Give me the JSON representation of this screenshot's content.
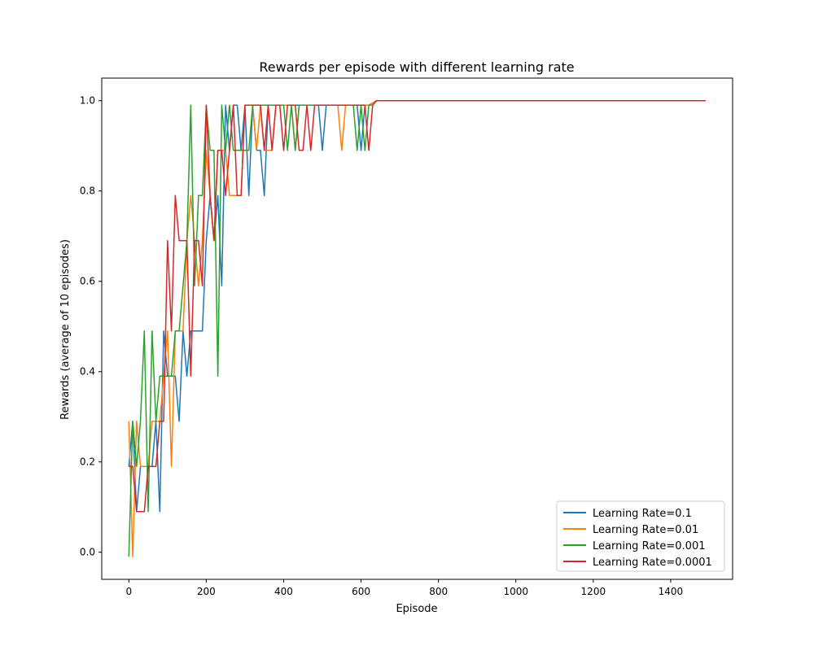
{
  "chart_data": {
    "type": "line",
    "title": "Rewards per episode with different learning rate",
    "xlabel": "Episode",
    "ylabel": "Rewards (average of 10 episodes)",
    "xlim": [
      -70,
      1560
    ],
    "ylim": [
      -0.06,
      1.05
    ],
    "x_ticks": [
      0,
      200,
      400,
      600,
      800,
      1000,
      1200,
      1400
    ],
    "y_ticks": [
      0.0,
      0.2,
      0.4,
      0.6,
      0.8,
      1.0
    ],
    "x_tick_labels": [
      "0",
      "200",
      "400",
      "600",
      "800",
      "1000",
      "1200",
      "1400"
    ],
    "y_tick_labels": [
      "0.0",
      "0.2",
      "0.4",
      "0.6",
      "0.8",
      "1.0"
    ],
    "grid": false,
    "legend_position": "lower-right",
    "series": [
      {
        "name": "Learning Rate=0.1",
        "color": "#1f77b4",
        "points": [
          [
            0,
            0.19
          ],
          [
            10,
            0.29
          ],
          [
            20,
            0.09
          ],
          [
            30,
            0.19
          ],
          [
            40,
            0.19
          ],
          [
            50,
            0.19
          ],
          [
            60,
            0.19
          ],
          [
            70,
            0.29
          ],
          [
            80,
            0.09
          ],
          [
            90,
            0.49
          ],
          [
            100,
            0.39
          ],
          [
            110,
            0.39
          ],
          [
            120,
            0.39
          ],
          [
            130,
            0.29
          ],
          [
            140,
            0.49
          ],
          [
            150,
            0.39
          ],
          [
            160,
            0.49
          ],
          [
            170,
            0.49
          ],
          [
            180,
            0.49
          ],
          [
            190,
            0.49
          ],
          [
            200,
            0.69
          ],
          [
            210,
            0.79
          ],
          [
            220,
            0.69
          ],
          [
            230,
            0.79
          ],
          [
            240,
            0.59
          ],
          [
            250,
            0.99
          ],
          [
            260,
            0.89
          ],
          [
            270,
            0.99
          ],
          [
            280,
            0.99
          ],
          [
            290,
            0.89
          ],
          [
            300,
            0.99
          ],
          [
            310,
            0.79
          ],
          [
            320,
            0.99
          ],
          [
            330,
            0.89
          ],
          [
            340,
            0.89
          ],
          [
            350,
            0.79
          ],
          [
            360,
            0.99
          ],
          [
            370,
            0.99
          ],
          [
            380,
            0.99
          ],
          [
            390,
            0.99
          ],
          [
            400,
            0.99
          ],
          [
            410,
            0.99
          ],
          [
            420,
            0.99
          ],
          [
            430,
            0.99
          ],
          [
            440,
            0.99
          ],
          [
            450,
            0.99
          ],
          [
            460,
            0.99
          ],
          [
            470,
            0.99
          ],
          [
            480,
            0.99
          ],
          [
            490,
            0.99
          ],
          [
            500,
            0.89
          ],
          [
            510,
            0.99
          ],
          [
            520,
            0.99
          ],
          [
            560,
            0.99
          ],
          [
            580,
            0.99
          ],
          [
            590,
            0.99
          ],
          [
            600,
            0.89
          ],
          [
            610,
            0.99
          ],
          [
            620,
            0.99
          ],
          [
            640,
            1.0
          ],
          [
            1490,
            1.0
          ]
        ]
      },
      {
        "name": "Learning Rate=0.01",
        "color": "#ff7f0e",
        "points": [
          [
            0,
            0.29
          ],
          [
            10,
            -0.01
          ],
          [
            20,
            0.29
          ],
          [
            30,
            0.19
          ],
          [
            40,
            0.19
          ],
          [
            50,
            0.19
          ],
          [
            60,
            0.29
          ],
          [
            70,
            0.29
          ],
          [
            80,
            0.29
          ],
          [
            90,
            0.39
          ],
          [
            100,
            0.49
          ],
          [
            110,
            0.19
          ],
          [
            120,
            0.49
          ],
          [
            130,
            0.49
          ],
          [
            140,
            0.49
          ],
          [
            150,
            0.69
          ],
          [
            160,
            0.79
          ],
          [
            170,
            0.69
          ],
          [
            180,
            0.59
          ],
          [
            190,
            0.69
          ],
          [
            200,
            0.89
          ],
          [
            210,
            0.79
          ],
          [
            220,
            0.69
          ],
          [
            230,
            0.89
          ],
          [
            240,
            0.89
          ],
          [
            250,
            0.89
          ],
          [
            260,
            0.79
          ],
          [
            270,
            0.79
          ],
          [
            280,
            0.79
          ],
          [
            290,
            0.79
          ],
          [
            300,
            0.99
          ],
          [
            310,
            0.99
          ],
          [
            320,
            0.99
          ],
          [
            330,
            0.89
          ],
          [
            340,
            0.99
          ],
          [
            350,
            0.89
          ],
          [
            360,
            0.89
          ],
          [
            370,
            0.89
          ],
          [
            380,
            0.99
          ],
          [
            390,
            0.99
          ],
          [
            400,
            0.99
          ],
          [
            410,
            0.99
          ],
          [
            420,
            0.99
          ],
          [
            430,
            0.89
          ],
          [
            440,
            0.99
          ],
          [
            450,
            0.99
          ],
          [
            460,
            0.99
          ],
          [
            470,
            0.99
          ],
          [
            480,
            0.99
          ],
          [
            490,
            0.99
          ],
          [
            500,
            0.99
          ],
          [
            510,
            0.99
          ],
          [
            520,
            0.99
          ],
          [
            530,
            0.99
          ],
          [
            540,
            0.99
          ],
          [
            550,
            0.89
          ],
          [
            560,
            0.99
          ],
          [
            570,
            0.99
          ],
          [
            580,
            0.99
          ],
          [
            590,
            0.99
          ],
          [
            600,
            0.99
          ],
          [
            610,
            0.99
          ],
          [
            620,
            0.99
          ],
          [
            640,
            1.0
          ],
          [
            1490,
            1.0
          ]
        ]
      },
      {
        "name": "Learning Rate=0.001",
        "color": "#2ca02c",
        "points": [
          [
            0,
            -0.01
          ],
          [
            10,
            0.29
          ],
          [
            20,
            0.19
          ],
          [
            30,
            0.29
          ],
          [
            40,
            0.49
          ],
          [
            50,
            0.09
          ],
          [
            60,
            0.49
          ],
          [
            70,
            0.29
          ],
          [
            80,
            0.39
          ],
          [
            90,
            0.39
          ],
          [
            100,
            0.39
          ],
          [
            110,
            0.39
          ],
          [
            120,
            0.49
          ],
          [
            130,
            0.49
          ],
          [
            140,
            0.59
          ],
          [
            150,
            0.69
          ],
          [
            160,
            0.99
          ],
          [
            170,
            0.59
          ],
          [
            180,
            0.79
          ],
          [
            190,
            0.79
          ],
          [
            200,
            0.99
          ],
          [
            210,
            0.89
          ],
          [
            220,
            0.89
          ],
          [
            230,
            0.39
          ],
          [
            240,
            0.99
          ],
          [
            250,
            0.89
          ],
          [
            260,
            0.99
          ],
          [
            270,
            0.89
          ],
          [
            280,
            0.89
          ],
          [
            290,
            0.89
          ],
          [
            300,
            0.89
          ],
          [
            310,
            0.89
          ],
          [
            320,
            0.99
          ],
          [
            330,
            0.99
          ],
          [
            340,
            0.99
          ],
          [
            350,
            0.99
          ],
          [
            360,
            0.99
          ],
          [
            370,
            0.99
          ],
          [
            380,
            0.99
          ],
          [
            390,
            0.99
          ],
          [
            400,
            0.99
          ],
          [
            410,
            0.89
          ],
          [
            420,
            0.99
          ],
          [
            430,
            0.89
          ],
          [
            440,
            0.99
          ],
          [
            450,
            0.99
          ],
          [
            460,
            0.99
          ],
          [
            470,
            0.99
          ],
          [
            480,
            0.99
          ],
          [
            490,
            0.99
          ],
          [
            500,
            0.99
          ],
          [
            510,
            0.99
          ],
          [
            520,
            0.99
          ],
          [
            530,
            0.99
          ],
          [
            540,
            0.99
          ],
          [
            550,
            0.99
          ],
          [
            560,
            0.99
          ],
          [
            570,
            0.99
          ],
          [
            580,
            0.99
          ],
          [
            590,
            0.89
          ],
          [
            600,
            0.99
          ],
          [
            610,
            0.89
          ],
          [
            620,
            0.99
          ],
          [
            630,
            0.99
          ],
          [
            640,
            1.0
          ],
          [
            1490,
            1.0
          ]
        ]
      },
      {
        "name": "Learning Rate=0.0001",
        "color": "#d62728",
        "points": [
          [
            0,
            0.19
          ],
          [
            10,
            0.19
          ],
          [
            20,
            0.09
          ],
          [
            30,
            0.09
          ],
          [
            40,
            0.09
          ],
          [
            50,
            0.19
          ],
          [
            60,
            0.19
          ],
          [
            70,
            0.19
          ],
          [
            80,
            0.29
          ],
          [
            90,
            0.29
          ],
          [
            100,
            0.69
          ],
          [
            110,
            0.49
          ],
          [
            120,
            0.79
          ],
          [
            130,
            0.69
          ],
          [
            140,
            0.69
          ],
          [
            150,
            0.69
          ],
          [
            160,
            0.39
          ],
          [
            170,
            0.69
          ],
          [
            180,
            0.69
          ],
          [
            190,
            0.59
          ],
          [
            200,
            0.99
          ],
          [
            210,
            0.79
          ],
          [
            220,
            0.69
          ],
          [
            230,
            0.89
          ],
          [
            240,
            0.89
          ],
          [
            250,
            0.79
          ],
          [
            260,
            0.89
          ],
          [
            270,
            0.99
          ],
          [
            280,
            0.79
          ],
          [
            290,
            0.79
          ],
          [
            300,
            0.99
          ],
          [
            310,
            0.99
          ],
          [
            320,
            0.99
          ],
          [
            330,
            0.99
          ],
          [
            340,
            0.99
          ],
          [
            350,
            0.89
          ],
          [
            360,
            0.99
          ],
          [
            370,
            0.89
          ],
          [
            380,
            0.99
          ],
          [
            390,
            0.99
          ],
          [
            400,
            0.89
          ],
          [
            410,
            0.99
          ],
          [
            420,
            0.99
          ],
          [
            430,
            0.99
          ],
          [
            440,
            0.89
          ],
          [
            450,
            0.89
          ],
          [
            460,
            0.99
          ],
          [
            470,
            0.89
          ],
          [
            480,
            0.99
          ],
          [
            490,
            0.99
          ],
          [
            500,
            0.99
          ],
          [
            510,
            0.99
          ],
          [
            520,
            0.99
          ],
          [
            530,
            0.99
          ],
          [
            540,
            0.99
          ],
          [
            550,
            0.99
          ],
          [
            560,
            0.99
          ],
          [
            570,
            0.99
          ],
          [
            580,
            0.99
          ],
          [
            590,
            0.99
          ],
          [
            600,
            0.99
          ],
          [
            610,
            0.99
          ],
          [
            620,
            0.89
          ],
          [
            630,
            0.99
          ],
          [
            640,
            1.0
          ],
          [
            1490,
            1.0
          ]
        ]
      }
    ]
  }
}
